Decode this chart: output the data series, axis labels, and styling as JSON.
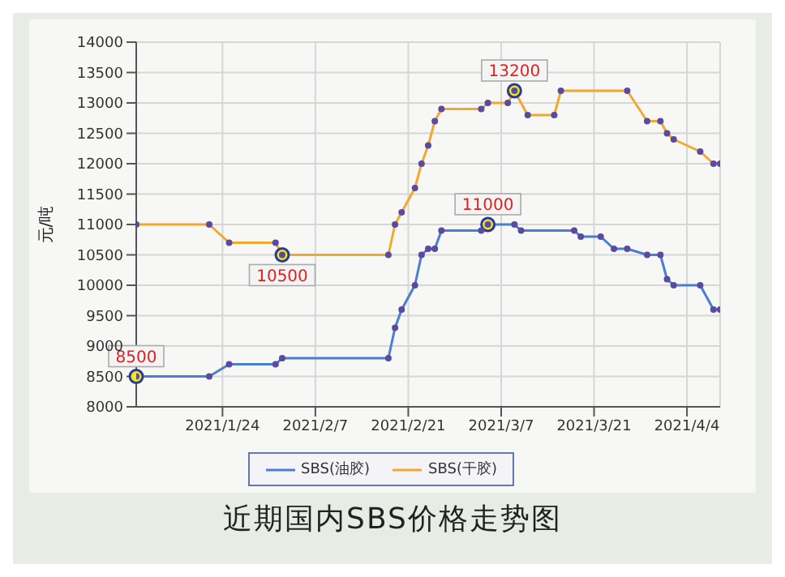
{
  "chart_data": {
    "type": "line",
    "title": "近期国内SBS价格走势图",
    "ylabel": "元/吨",
    "xlim": [
      "2021-01-11",
      "2021-04-09"
    ],
    "xticks": [
      {
        "value": "2021-01-24",
        "label": "2021/1/24"
      },
      {
        "value": "2021-02-07",
        "label": "2021/2/7"
      },
      {
        "value": "2021-02-21",
        "label": "2021/2/21"
      },
      {
        "value": "2021-03-07",
        "label": "2021/3/7"
      },
      {
        "value": "2021-03-21",
        "label": "2021/3/21"
      },
      {
        "value": "2021-04-04",
        "label": "2021/4/4"
      }
    ],
    "ylim": [
      8000,
      14000
    ],
    "yticks": [
      8000,
      8500,
      9000,
      9500,
      10000,
      10500,
      11000,
      11500,
      12000,
      12500,
      13000,
      13500,
      14000
    ],
    "grid": true,
    "legend": "bottom",
    "marker": "circle",
    "line_style": "solid",
    "series": [
      {
        "name": "SBS(油胶)",
        "color": "#4a7fcf",
        "x": [
          "2021-01-11",
          "2021-01-22",
          "2021-01-25",
          "2021-02-01",
          "2021-02-02",
          "2021-02-18",
          "2021-02-19",
          "2021-02-20",
          "2021-02-22",
          "2021-02-23",
          "2021-02-24",
          "2021-02-25",
          "2021-02-26",
          "2021-03-04",
          "2021-03-05",
          "2021-03-09",
          "2021-03-10",
          "2021-03-18",
          "2021-03-19",
          "2021-03-22",
          "2021-03-24",
          "2021-03-26",
          "2021-03-29",
          "2021-03-31",
          "2021-04-01",
          "2021-04-02",
          "2021-04-06",
          "2021-04-08",
          "2021-04-09"
        ],
        "values": [
          8500,
          8500,
          8700,
          8700,
          8800,
          8800,
          9300,
          9600,
          10000,
          10500,
          10600,
          10600,
          10900,
          10900,
          11000,
          11000,
          10900,
          10900,
          10800,
          10800,
          10600,
          10600,
          10500,
          10500,
          10100,
          10000,
          10000,
          9600,
          9600
        ]
      },
      {
        "name": "SBS(干胶)",
        "color": "#f0a830",
        "x": [
          "2021-01-11",
          "2021-01-22",
          "2021-01-25",
          "2021-02-01",
          "2021-02-02",
          "2021-02-18",
          "2021-02-19",
          "2021-02-20",
          "2021-02-22",
          "2021-02-23",
          "2021-02-24",
          "2021-02-25",
          "2021-02-26",
          "2021-03-04",
          "2021-03-05",
          "2021-03-08",
          "2021-03-09",
          "2021-03-11",
          "2021-03-15",
          "2021-03-16",
          "2021-03-26",
          "2021-03-29",
          "2021-03-31",
          "2021-04-01",
          "2021-04-02",
          "2021-04-06",
          "2021-04-08",
          "2021-04-09"
        ],
        "values": [
          11000,
          11000,
          10700,
          10700,
          10500,
          10500,
          11000,
          11200,
          11600,
          12000,
          12300,
          12700,
          12900,
          12900,
          13000,
          13000,
          13200,
          12800,
          12800,
          13200,
          13200,
          12700,
          12700,
          12500,
          12400,
          12200,
          12000,
          12000
        ]
      }
    ],
    "annotations": [
      {
        "text": "8500",
        "x": "2021-01-11",
        "y": 8500
      },
      {
        "text": "10500",
        "x": "2021-02-02",
        "y": 10500
      },
      {
        "text": "11000",
        "x": "2021-03-05",
        "y": 11000
      },
      {
        "text": "13200",
        "x": "2021-03-09",
        "y": 13200
      }
    ]
  }
}
